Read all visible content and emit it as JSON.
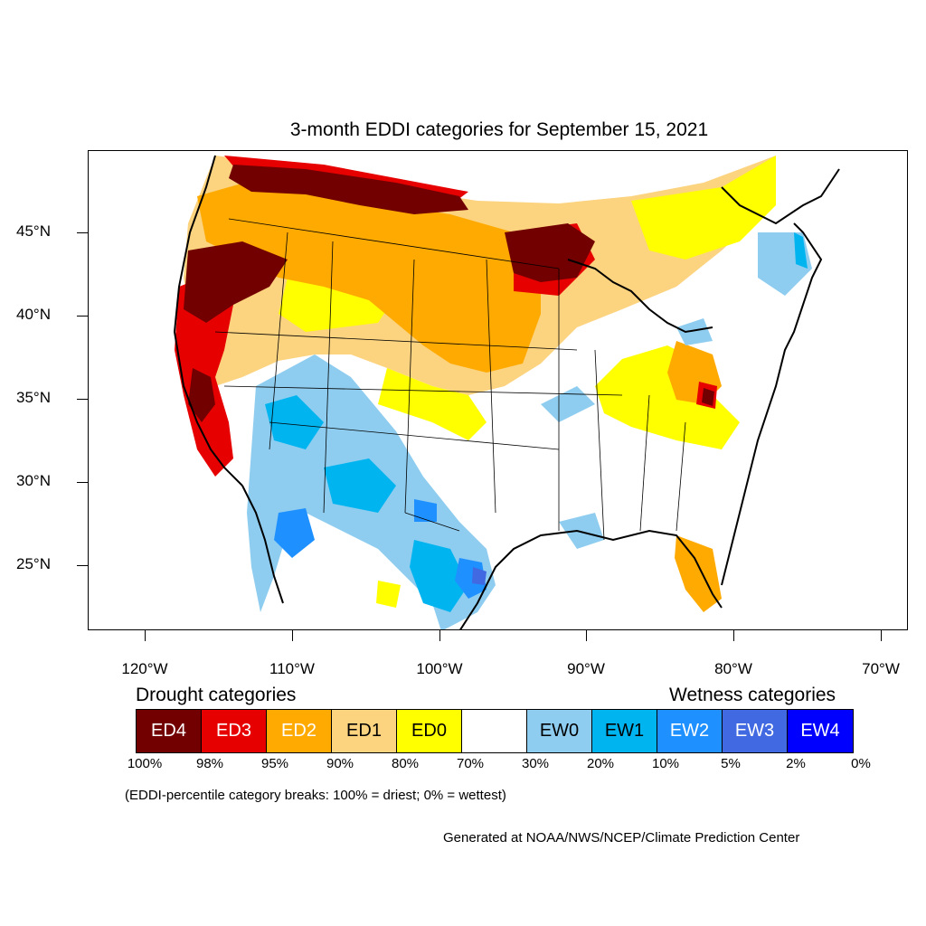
{
  "title": "3-month EDDI categories for September 15, 2021",
  "lat_labels": [
    "45°N",
    "40°N",
    "35°N",
    "30°N",
    "25°N"
  ],
  "lon_labels": [
    "120°W",
    "110°W",
    "100°W",
    "90°W",
    "80°W",
    "70°W"
  ],
  "legend": {
    "drought_heading": "Drought categories",
    "wetness_heading": "Wetness categories",
    "categories": [
      {
        "label": "ED4",
        "color": "#730000",
        "text_color": "#ffffff"
      },
      {
        "label": "ED3",
        "color": "#e60000",
        "text_color": "#ffffff"
      },
      {
        "label": "ED2",
        "color": "#ffaa00",
        "text_color": "#ffffff"
      },
      {
        "label": "ED1",
        "color": "#fcd37f",
        "text_color": "#000000"
      },
      {
        "label": "ED0",
        "color": "#ffff00",
        "text_color": "#000000"
      },
      {
        "label": "",
        "color": "#ffffff",
        "text_color": "#000000"
      },
      {
        "label": "EW0",
        "color": "#8ecdf0",
        "text_color": "#000000"
      },
      {
        "label": "EW1",
        "color": "#00b4f0",
        "text_color": "#000000"
      },
      {
        "label": "EW2",
        "color": "#1e90ff",
        "text_color": "#ffffff"
      },
      {
        "label": "EW3",
        "color": "#4169e1",
        "text_color": "#ffffff"
      },
      {
        "label": "EW4",
        "color": "#0000ff",
        "text_color": "#ffffff"
      }
    ],
    "breaks": [
      "100%",
      "98%",
      "95%",
      "90%",
      "80%",
      "70%",
      "30%",
      "20%",
      "10%",
      "5%",
      "2%",
      "0%"
    ]
  },
  "note": "(EDDI-percentile category breaks: 100% = driest; 0% = wettest)",
  "credit": "Generated at NOAA/NWS/NCEP/Climate Prediction Center"
}
